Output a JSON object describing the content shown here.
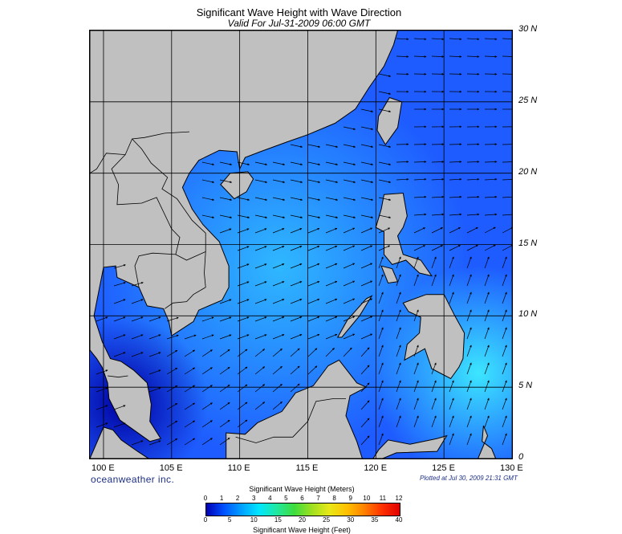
{
  "header": {
    "title": "Significant Wave Height with Wave Direction",
    "subtitle": "Valid For Jul-31-2009 06:00 GMT"
  },
  "map": {
    "lon_range": [
      99,
      130
    ],
    "lat_range": [
      0,
      30
    ],
    "lat_labels": [
      "30 N",
      "25 N",
      "20 N",
      "15 N",
      "10 N",
      "5 N",
      "0"
    ],
    "lon_labels": [
      "100 E",
      "105 E",
      "110 E",
      "115 E",
      "120 E",
      "125 E",
      "130 E"
    ],
    "land_color": "#c0c0c0",
    "ocean_base_color": "#1e5cff",
    "arrow_color": "#000000"
  },
  "branding": {
    "logo_text": "oceanweather inc.",
    "plotted_text": "Plotted at Jul 30, 2009 21:31 GMT"
  },
  "colorbar": {
    "meters_title": "Significant Wave Height (Meters)",
    "feet_title": "Significant Wave Height (Feet)",
    "meters_ticks": [
      "0",
      "1",
      "2",
      "3",
      "4",
      "5",
      "6",
      "7",
      "8",
      "9",
      "10",
      "11",
      "12"
    ],
    "feet_ticks": [
      "0",
      "5",
      "10",
      "15",
      "20",
      "25",
      "30",
      "35",
      "40"
    ],
    "colors": [
      "#0000b4",
      "#0050ff",
      "#00a0ff",
      "#00e6ff",
      "#20e8a0",
      "#3ddc3d",
      "#9ee020",
      "#e8e818",
      "#ffc000",
      "#ff8000",
      "#ff3000",
      "#e00000"
    ]
  }
}
